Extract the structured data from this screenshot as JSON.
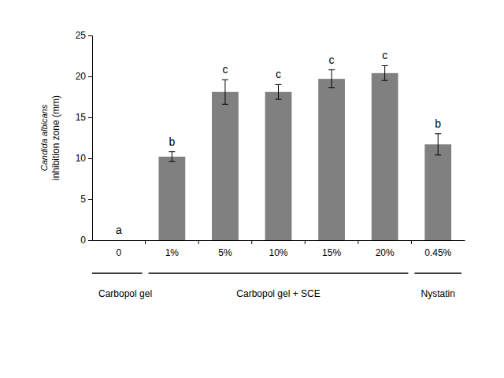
{
  "chart_data": {
    "type": "bar",
    "ylabel": [
      "Candida albicans",
      "inhibition zone (mm)"
    ],
    "categories": [
      "0",
      "1%",
      "5%",
      "10%",
      "15%",
      "20%",
      "0.45%"
    ],
    "values": [
      0,
      10.2,
      18.1,
      18.1,
      19.7,
      20.4,
      11.7
    ],
    "errors": [
      0,
      0.6,
      1.5,
      0.9,
      1.1,
      0.9,
      1.3
    ],
    "annotations": [
      "a",
      "b",
      "c",
      "c",
      "c",
      "c",
      "b"
    ],
    "groups": [
      "Carbopol gel",
      "Carbopol gel + SCE",
      "Carbopol gel + SCE",
      "Carbopol gel + SCE",
      "Carbopol gel + SCE",
      "Carbopol gel + SCE",
      "Nystatin"
    ],
    "color": "#808080",
    "ylim": [
      0,
      25
    ],
    "yticks": [
      0,
      5,
      10,
      15,
      20,
      25
    ],
    "grid": false
  }
}
